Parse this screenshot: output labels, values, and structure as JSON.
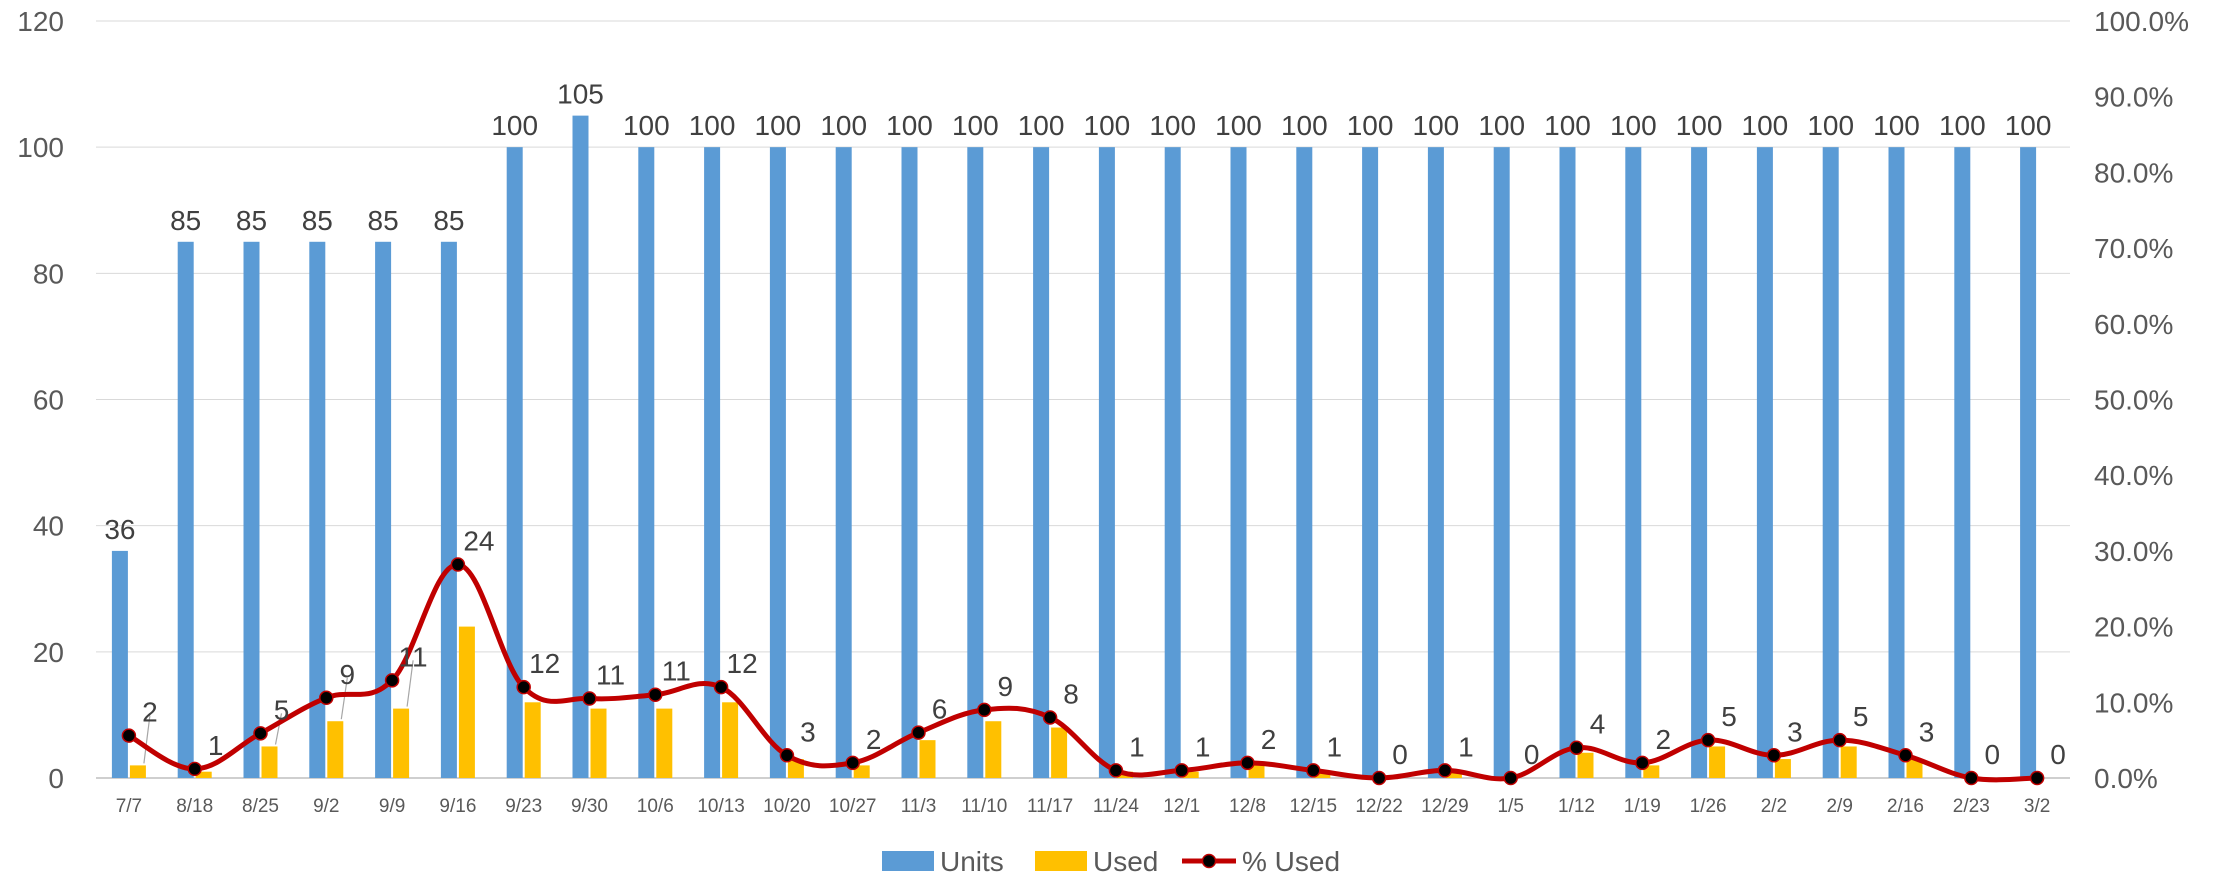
{
  "chart_data": {
    "type": "bar",
    "categories": [
      "7/7",
      "8/18",
      "8/25",
      "9/2",
      "9/9",
      "9/16",
      "9/23",
      "9/30",
      "10/6",
      "10/13",
      "10/20",
      "10/27",
      "11/3",
      "11/10",
      "11/17",
      "11/24",
      "12/1",
      "12/8",
      "12/15",
      "12/22",
      "12/29",
      "1/5",
      "1/12",
      "1/19",
      "1/26",
      "2/2",
      "2/9",
      "2/16",
      "2/23",
      "3/2"
    ],
    "series": [
      {
        "name": "Units",
        "type": "bar",
        "axis": "left",
        "color": "#5B9BD5",
        "values": [
          36,
          85,
          85,
          85,
          85,
          85,
          100,
          105,
          100,
          100,
          100,
          100,
          100,
          100,
          100,
          100,
          100,
          100,
          100,
          100,
          100,
          100,
          100,
          100,
          100,
          100,
          100,
          100,
          100,
          100
        ]
      },
      {
        "name": "Used",
        "type": "bar",
        "axis": "left",
        "color": "#FFC000",
        "values": [
          2,
          1,
          5,
          9,
          11,
          24,
          12,
          11,
          11,
          12,
          3,
          2,
          6,
          9,
          8,
          1,
          1,
          2,
          1,
          0,
          1,
          0,
          4,
          2,
          5,
          3,
          5,
          3,
          0,
          0
        ]
      },
      {
        "name": "% Used",
        "type": "line",
        "axis": "right",
        "color": "#C00000",
        "marker_color": "#000000",
        "values": [
          5.6,
          1.2,
          5.9,
          10.6,
          12.9,
          28.2,
          12.0,
          10.5,
          11.0,
          12.0,
          3.0,
          2.0,
          6.0,
          9.0,
          8.0,
          1.0,
          1.0,
          2.0,
          1.0,
          0.0,
          1.0,
          0.0,
          4.0,
          2.0,
          5.0,
          3.0,
          5.0,
          3.0,
          0.0,
          0.0
        ]
      }
    ],
    "ylim": [
      0,
      120
    ],
    "y_ticks": [
      "0",
      "20",
      "40",
      "60",
      "80",
      "100",
      "120"
    ],
    "y2lim": [
      0,
      100
    ],
    "y2_ticks": [
      "0.0%",
      "10.0%",
      "20.0%",
      "30.0%",
      "40.0%",
      "50.0%",
      "60.0%",
      "70.0%",
      "80.0%",
      "90.0%",
      "100.0%"
    ],
    "grid": true,
    "legend": {
      "position": "bottom",
      "items": [
        "Units",
        "Used",
        "% Used"
      ]
    },
    "title": "",
    "xlabel": "",
    "ylabel": ""
  }
}
